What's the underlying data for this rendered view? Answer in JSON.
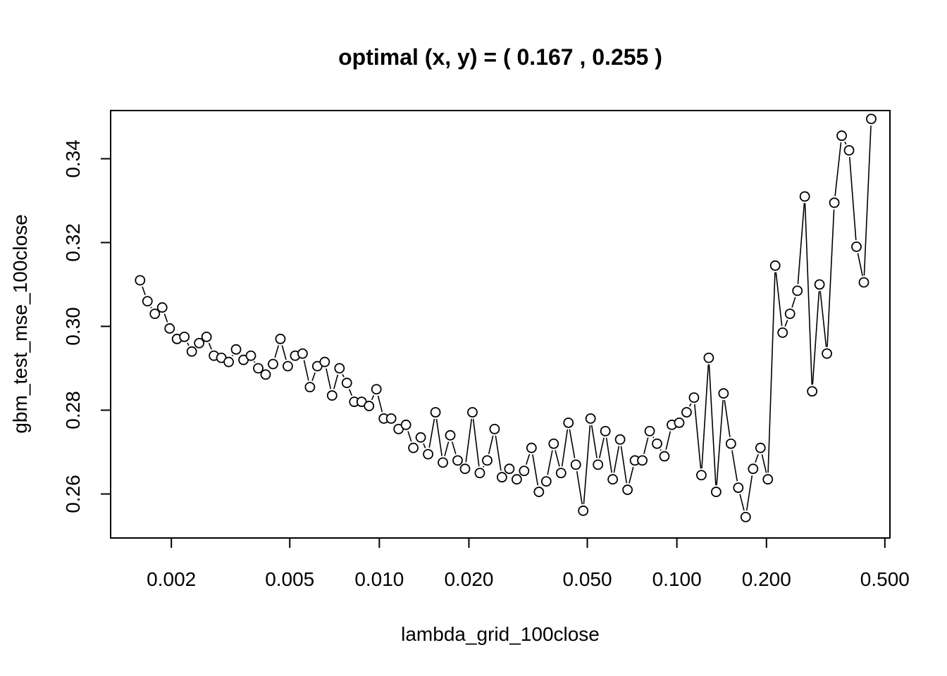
{
  "chart_data": {
    "type": "scatter",
    "style": "overplotted points connected by line segments with gaps (R type='b')",
    "title": "optimal (x, y) = ( 0.167 ,  0.255 )",
    "xlabel": "lambda_grid_100close",
    "ylabel": "gbm_test_mse_100close",
    "x_scale": "log",
    "xlim": [
      0.00125,
      0.52
    ],
    "ylim": [
      0.2495,
      0.3515
    ],
    "x_ticks": [
      0.002,
      0.005,
      0.01,
      0.02,
      0.05,
      0.1,
      0.2,
      0.5
    ],
    "x_tick_labels": [
      "0.002",
      "0.005",
      "0.010",
      "0.020",
      "0.050",
      "0.100",
      "0.200",
      "0.500"
    ],
    "y_ticks": [
      0.26,
      0.28,
      0.3,
      0.32,
      0.34
    ],
    "y_tick_labels": [
      "0.26",
      "0.28",
      "0.30",
      "0.32",
      "0.34"
    ],
    "grid": false,
    "point_color": "#000000",
    "x_range": [
      0.00157,
      0.45
    ],
    "y": [
      0.311,
      0.306,
      0.303,
      0.3045,
      0.2995,
      0.297,
      0.2975,
      0.294,
      0.296,
      0.2975,
      0.293,
      0.2925,
      0.2915,
      0.2945,
      0.292,
      0.293,
      0.29,
      0.2885,
      0.291,
      0.297,
      0.2905,
      0.293,
      0.2935,
      0.2855,
      0.2905,
      0.2915,
      0.2835,
      0.29,
      0.2865,
      0.282,
      0.282,
      0.281,
      0.285,
      0.278,
      0.278,
      0.2755,
      0.2765,
      0.271,
      0.2735,
      0.2695,
      0.2795,
      0.2675,
      0.274,
      0.268,
      0.266,
      0.2795,
      0.265,
      0.268,
      0.2755,
      0.264,
      0.266,
      0.2635,
      0.2655,
      0.271,
      0.2605,
      0.263,
      0.272,
      0.265,
      0.277,
      0.267,
      0.256,
      0.278,
      0.267,
      0.275,
      0.2635,
      0.273,
      0.261,
      0.268,
      0.268,
      0.275,
      0.272,
      0.269,
      0.2765,
      0.277,
      0.2795,
      0.283,
      0.2645,
      0.2925,
      0.2605,
      0.284,
      0.272,
      0.2615,
      0.2545,
      0.266,
      0.271,
      0.2635,
      0.3145,
      0.2985,
      0.303,
      0.3085,
      0.331,
      0.2845,
      0.31,
      0.2935,
      0.3295,
      0.3455,
      0.342,
      0.319,
      0.3105,
      0.3495
    ]
  }
}
